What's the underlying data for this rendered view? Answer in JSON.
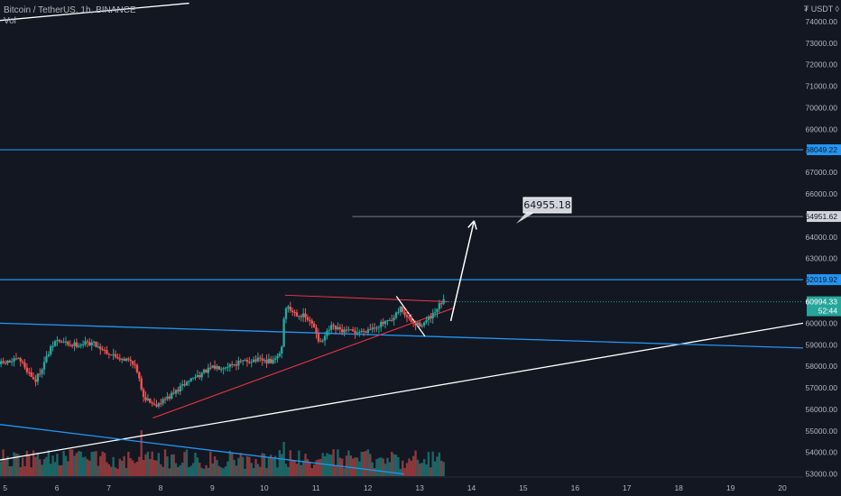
{
  "header": {
    "symbol_line": "Bitcoin / TetherUS, 1h, BINANCE",
    "volume_label": "Vol",
    "currency": "₮ USDT ◊"
  },
  "colors": {
    "background": "#131722",
    "up": "#26a69a",
    "down": "#ef5350",
    "horizontal_level": "#2196f3",
    "trendline_white": "#ffffff",
    "trendline_red": "#f23645"
  },
  "chart_data": {
    "type": "candlestick",
    "symbol": "BTCUSDT",
    "interval": "1h",
    "exchange": "BINANCE",
    "x_tick_labels": [
      "5",
      "6",
      "7",
      "8",
      "9",
      "10",
      "11",
      "12",
      "13",
      "14",
      "15",
      "16",
      "17",
      "18",
      "19",
      "20"
    ],
    "y_tick_labels": [
      "53000.00",
      "54000.00",
      "55000.00",
      "56000.00",
      "57000.00",
      "58000.00",
      "59000.00",
      "60000.00",
      "61000.00",
      "62000.00",
      "63000.00",
      "64000.00",
      "65000.00",
      "66000.00",
      "67000.00",
      "68000.00",
      "69000.00",
      "70000.00",
      "71000.00",
      "72000.00",
      "73000.00",
      "74000.00"
    ],
    "ylim": [
      52900,
      75000
    ],
    "xlim_days": [
      4.9,
      20.4
    ],
    "candles_last_x_day": 13.45,
    "price_path": [
      [
        4.9,
        58100
      ],
      [
        5.3,
        58300
      ],
      [
        5.6,
        57300
      ],
      [
        5.9,
        58800
      ],
      [
        6.0,
        59200
      ],
      [
        6.3,
        59000
      ],
      [
        6.7,
        59100
      ],
      [
        7.1,
        58500
      ],
      [
        7.5,
        58200
      ],
      [
        7.7,
        56600
      ],
      [
        7.9,
        56200
      ],
      [
        8.2,
        56600
      ],
      [
        8.6,
        57400
      ],
      [
        9.0,
        57900
      ],
      [
        9.4,
        58100
      ],
      [
        9.8,
        58300
      ],
      [
        10.2,
        58200
      ],
      [
        10.35,
        58700
      ],
      [
        10.42,
        60800
      ],
      [
        10.6,
        60500
      ],
      [
        10.8,
        60300
      ],
      [
        11.0,
        59800
      ],
      [
        11.1,
        59000
      ],
      [
        11.3,
        59800
      ],
      [
        11.6,
        59600
      ],
      [
        11.9,
        59600
      ],
      [
        12.2,
        59900
      ],
      [
        12.5,
        60100
      ],
      [
        12.65,
        60700
      ],
      [
        12.8,
        60200
      ],
      [
        12.95,
        59900
      ],
      [
        13.1,
        60000
      ],
      [
        13.3,
        60400
      ],
      [
        13.45,
        60994
      ]
    ],
    "horizontal_levels": [
      68049.22,
      62019.92
    ],
    "horizontal_level_labels": [
      "68049.22",
      "62019.92"
    ],
    "target_level": 64951.62,
    "target_label": "64951.62",
    "callout_text": "64955.18",
    "current_price": 60994.33,
    "current_price_label": "60994.33",
    "countdown_label": "52:44",
    "trendlines": [
      {
        "color": "white",
        "from": [
          4.9,
          74050
        ],
        "to": [
          8.55,
          74850
        ]
      },
      {
        "color": "white",
        "from": [
          4.9,
          53650
        ],
        "to": [
          20.4,
          60000
        ]
      },
      {
        "color": "blue",
        "from": [
          4.9,
          60000
        ],
        "to": [
          20.4,
          58850
        ]
      },
      {
        "color": "blue",
        "from": [
          4.9,
          55300
        ],
        "to": [
          12.7,
          53000
        ]
      },
      {
        "color": "red",
        "from": [
          10.4,
          61300
        ],
        "to": [
          13.55,
          61000
        ]
      },
      {
        "color": "red",
        "from": [
          7.85,
          55600
        ],
        "to": [
          13.65,
          60700
        ]
      },
      {
        "color": "white",
        "from": [
          12.55,
          61250
        ],
        "to": [
          13.1,
          59400
        ]
      }
    ],
    "forecast_arrow": {
      "from": [
        13.6,
        60100
      ],
      "to": [
        14.05,
        64750
      ]
    }
  }
}
